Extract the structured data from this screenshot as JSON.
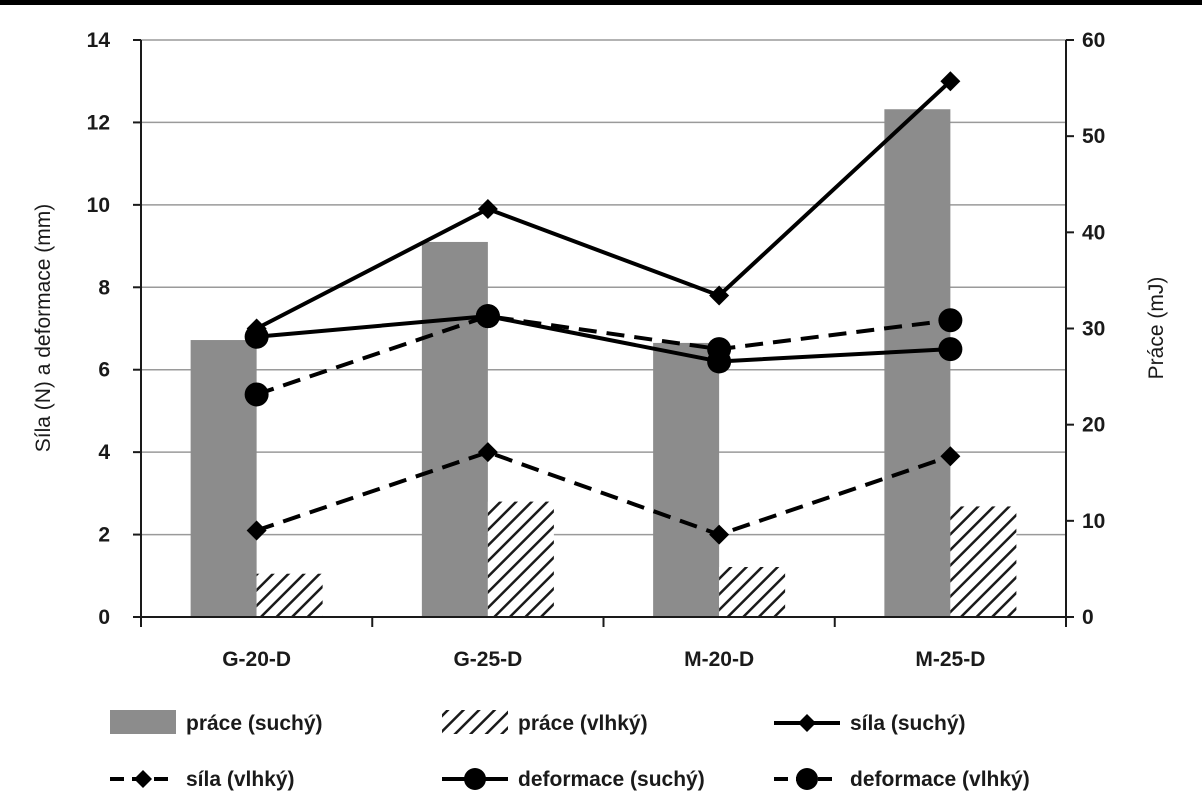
{
  "chart_data": {
    "type": "bar",
    "categories": [
      "G-20-D",
      "G-25-D",
      "M-20-D",
      "M-25-D"
    ],
    "left_axis": {
      "label": "Síla (N) a deformace (mm)",
      "min": 0,
      "max": 14,
      "step": 2,
      "ticks": [
        "0",
        "2",
        "4",
        "6",
        "8",
        "10",
        "12",
        "14"
      ]
    },
    "right_axis": {
      "label": "Práce (mJ)",
      "min": 0,
      "max": 60,
      "step": 10,
      "ticks": [
        "0",
        "10",
        "20",
        "30",
        "40",
        "50",
        "60"
      ]
    },
    "grid": true,
    "legend_position": "bottom",
    "series": [
      {
        "name": "práce (suchý)",
        "kind": "bar",
        "axis": "right",
        "style": "solid",
        "color": "#8c8c8c",
        "values": [
          28.8,
          39.0,
          28.5,
          52.8
        ]
      },
      {
        "name": "práce (vlhký)",
        "kind": "bar",
        "axis": "right",
        "style": "hatch",
        "color": "#1a1a1a",
        "values": [
          4.5,
          12.0,
          5.2,
          11.5
        ]
      },
      {
        "name": "síla (suchý)",
        "kind": "line",
        "axis": "left",
        "style": "solid",
        "marker": "diamond",
        "color": "#000000",
        "values": [
          7.0,
          9.9,
          7.8,
          13.0
        ]
      },
      {
        "name": "síla (vlhký)",
        "kind": "line",
        "axis": "left",
        "style": "dashed",
        "marker": "diamond",
        "color": "#000000",
        "values": [
          2.1,
          4.0,
          2.0,
          3.9
        ]
      },
      {
        "name": "deformace (suchý)",
        "kind": "line",
        "axis": "left",
        "style": "solid",
        "marker": "circle",
        "color": "#000000",
        "values": [
          6.8,
          7.3,
          6.2,
          6.5
        ]
      },
      {
        "name": "deformace (vlhký)",
        "kind": "line",
        "axis": "left",
        "style": "dashed",
        "marker": "circle",
        "color": "#000000",
        "values": [
          5.4,
          7.3,
          6.5,
          7.2
        ]
      }
    ]
  }
}
